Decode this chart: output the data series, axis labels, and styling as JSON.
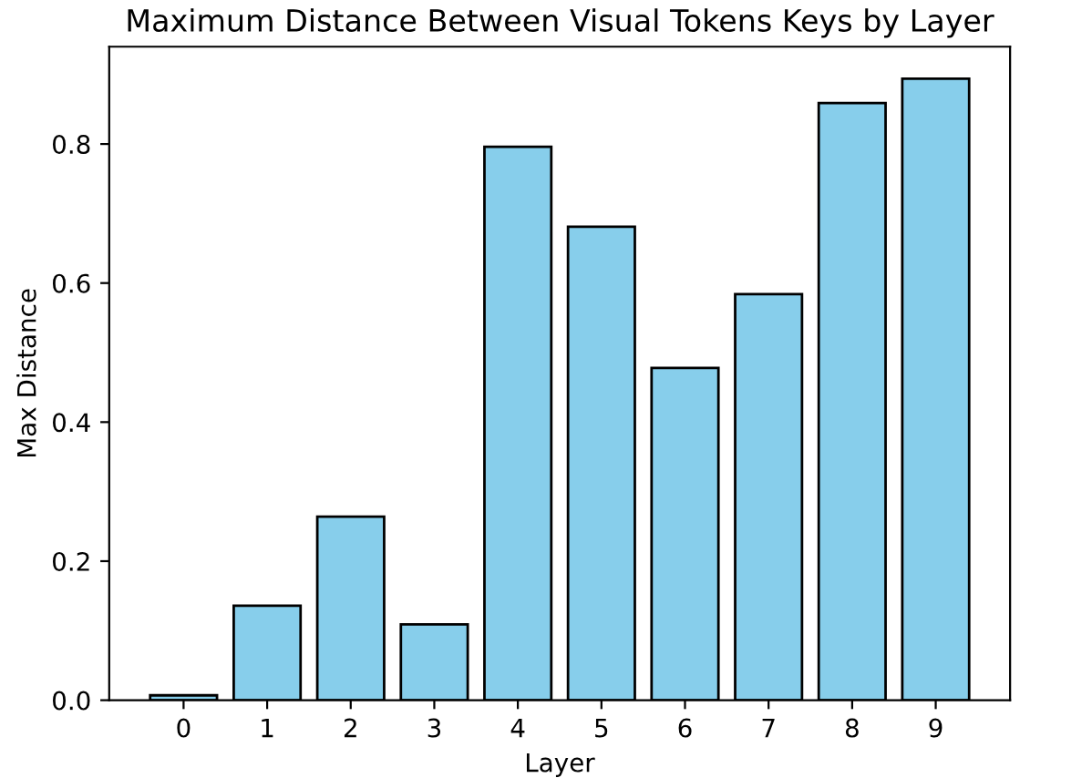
{
  "chart_data": {
    "type": "bar",
    "title": "Maximum Distance Between Visual Tokens Keys by Layer",
    "xlabel": "Layer",
    "ylabel": "Max Distance",
    "categories": [
      "0",
      "1",
      "2",
      "3",
      "4",
      "5",
      "6",
      "7",
      "8",
      "9"
    ],
    "values": [
      0.007,
      0.136,
      0.264,
      0.109,
      0.796,
      0.681,
      0.478,
      0.584,
      0.859,
      0.894
    ],
    "color": "#87ceeb",
    "ylim": [
      0,
      0.94
    ],
    "yticks": [
      {
        "value": 0,
        "label": "0.0"
      },
      {
        "value": 0.2,
        "label": "0.2"
      },
      {
        "value": 0.4,
        "label": "0.4"
      },
      {
        "value": 0.6,
        "label": "0.6"
      },
      {
        "value": 0.8,
        "label": "0.8"
      }
    ],
    "grid": false,
    "legend": false
  }
}
